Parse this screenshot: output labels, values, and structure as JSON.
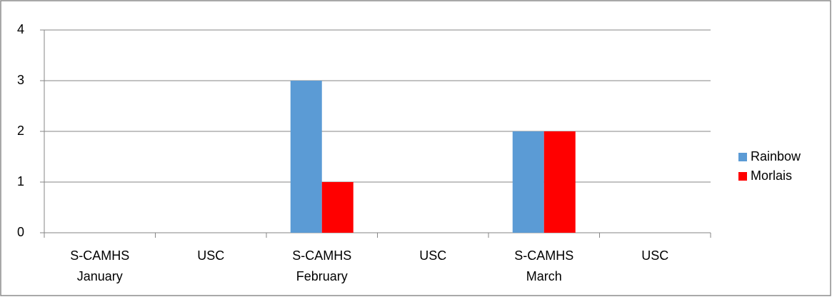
{
  "chart_data": {
    "type": "bar",
    "categories": [
      "S-CAMHS",
      "USC",
      "S-CAMHS",
      "USC",
      "S-CAMHS",
      "USC"
    ],
    "group_labels": [
      "January",
      null,
      "February",
      null,
      "March",
      null
    ],
    "series": [
      {
        "name": "Rainbow",
        "color": "#5b9bd5",
        "values": [
          0,
          0,
          3,
          0,
          2,
          0
        ]
      },
      {
        "name": "Morlais",
        "color": "#ff0000",
        "values": [
          0,
          0,
          1,
          0,
          2,
          0
        ]
      }
    ],
    "ylim": [
      0,
      4
    ],
    "yticks": [
      0,
      1,
      2,
      3,
      4
    ],
    "grid": true,
    "legend": "right"
  }
}
